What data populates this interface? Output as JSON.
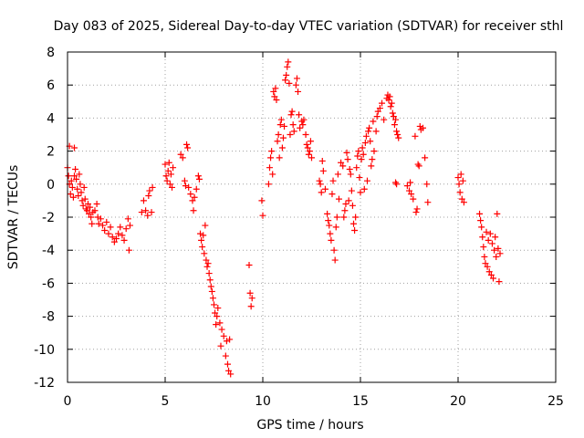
{
  "chart_data": {
    "type": "scatter",
    "title": "Day 083 of 2025, Sidereal Day-to-day VTEC variation (SDTVAR) for receiver sthl",
    "xlabel": "GPS time / hours",
    "ylabel": "SDTVAR / TECUs",
    "xlim": [
      0,
      25
    ],
    "ylim": [
      -12,
      8
    ],
    "xticks": [
      0,
      5,
      10,
      15,
      20,
      25
    ],
    "yticks": [
      -12,
      -10,
      -8,
      -6,
      -4,
      -2,
      0,
      2,
      4,
      6,
      8
    ],
    "grid": true,
    "marker": "+",
    "color": "#ff0000",
    "series": [
      {
        "name": "SDTVAR",
        "points": [
          [
            0.0,
            1.0
          ],
          [
            0.05,
            0.5
          ],
          [
            0.1,
            2.3
          ],
          [
            0.1,
            0.0
          ],
          [
            0.15,
            -0.6
          ],
          [
            0.2,
            0.2
          ],
          [
            0.25,
            -0.2
          ],
          [
            0.3,
            -0.8
          ],
          [
            0.35,
            2.2
          ],
          [
            0.35,
            0.5
          ],
          [
            0.4,
            0.9
          ],
          [
            0.45,
            0.3
          ],
          [
            0.5,
            -0.3
          ],
          [
            0.55,
            -0.7
          ],
          [
            0.6,
            0.6
          ],
          [
            0.65,
            0.0
          ],
          [
            0.7,
            -0.5
          ],
          [
            0.75,
            -1.0
          ],
          [
            0.8,
            -1.3
          ],
          [
            0.85,
            -0.2
          ],
          [
            0.9,
            -0.9
          ],
          [
            0.95,
            -1.5
          ],
          [
            1.0,
            -1.6
          ],
          [
            1.05,
            -1.2
          ],
          [
            1.1,
            -1.8
          ],
          [
            1.15,
            -1.4
          ],
          [
            1.2,
            -2.0
          ],
          [
            1.25,
            -2.4
          ],
          [
            1.3,
            -1.7
          ],
          [
            1.4,
            -1.6
          ],
          [
            1.5,
            -1.2
          ],
          [
            1.55,
            -2.0
          ],
          [
            1.6,
            -2.4
          ],
          [
            1.7,
            -2.1
          ],
          [
            1.8,
            -2.5
          ],
          [
            1.9,
            -2.8
          ],
          [
            2.0,
            -2.3
          ],
          [
            2.1,
            -3.0
          ],
          [
            2.2,
            -2.6
          ],
          [
            2.3,
            -3.2
          ],
          [
            2.4,
            -3.5
          ],
          [
            2.5,
            -3.3
          ],
          [
            2.6,
            -3.0
          ],
          [
            2.7,
            -2.6
          ],
          [
            2.8,
            -3.1
          ],
          [
            2.9,
            -3.4
          ],
          [
            3.0,
            -2.7
          ],
          [
            3.1,
            -2.1
          ],
          [
            3.15,
            -4.0
          ],
          [
            3.2,
            -2.5
          ],
          [
            3.8,
            -1.7
          ],
          [
            3.9,
            -1.0
          ],
          [
            4.0,
            -1.6
          ],
          [
            4.1,
            -1.9
          ],
          [
            4.15,
            -0.7
          ],
          [
            4.2,
            -0.4
          ],
          [
            4.3,
            -1.7
          ],
          [
            4.35,
            -0.2
          ],
          [
            5.0,
            1.2
          ],
          [
            5.05,
            0.5
          ],
          [
            5.1,
            0.2
          ],
          [
            5.15,
            0.8
          ],
          [
            5.2,
            1.3
          ],
          [
            5.25,
            0.0
          ],
          [
            5.3,
            0.6
          ],
          [
            5.35,
            -0.2
          ],
          [
            5.4,
            1.0
          ],
          [
            5.8,
            1.8
          ],
          [
            5.9,
            1.6
          ],
          [
            6.0,
            0.2
          ],
          [
            6.05,
            -0.1
          ],
          [
            6.1,
            2.4
          ],
          [
            6.15,
            2.2
          ],
          [
            6.2,
            -0.2
          ],
          [
            6.3,
            -0.6
          ],
          [
            6.4,
            -1.0
          ],
          [
            6.45,
            -1.6
          ],
          [
            6.5,
            -0.8
          ],
          [
            6.6,
            -0.3
          ],
          [
            6.7,
            0.5
          ],
          [
            6.75,
            0.3
          ],
          [
            6.8,
            -3.0
          ],
          [
            6.85,
            -3.4
          ],
          [
            6.9,
            -3.8
          ],
          [
            6.95,
            -3.1
          ],
          [
            7.0,
            -4.2
          ],
          [
            7.05,
            -2.5
          ],
          [
            7.1,
            -4.6
          ],
          [
            7.15,
            -5.0
          ],
          [
            7.2,
            -4.8
          ],
          [
            7.25,
            -5.4
          ],
          [
            7.3,
            -5.8
          ],
          [
            7.35,
            -6.2
          ],
          [
            7.4,
            -6.5
          ],
          [
            7.45,
            -6.9
          ],
          [
            7.5,
            -7.3
          ],
          [
            7.55,
            -7.8
          ],
          [
            7.6,
            -8.5
          ],
          [
            7.65,
            -8.0
          ],
          [
            7.7,
            -7.5
          ],
          [
            7.8,
            -8.4
          ],
          [
            7.85,
            -9.8
          ],
          [
            7.9,
            -8.8
          ],
          [
            8.0,
            -9.2
          ],
          [
            8.1,
            -10.4
          ],
          [
            8.15,
            -9.5
          ],
          [
            8.2,
            -10.9
          ],
          [
            8.25,
            -11.3
          ],
          [
            8.3,
            -9.4
          ],
          [
            8.35,
            -11.5
          ],
          [
            9.3,
            -4.9
          ],
          [
            9.35,
            -6.6
          ],
          [
            9.4,
            -7.4
          ],
          [
            9.45,
            -6.9
          ],
          [
            9.95,
            -1.0
          ],
          [
            10.0,
            -1.9
          ],
          [
            10.3,
            0.0
          ],
          [
            10.35,
            1.0
          ],
          [
            10.4,
            1.6
          ],
          [
            10.45,
            2.0
          ],
          [
            10.5,
            0.6
          ],
          [
            10.55,
            5.6
          ],
          [
            10.6,
            5.3
          ],
          [
            10.65,
            5.8
          ],
          [
            10.7,
            5.1
          ],
          [
            10.75,
            2.6
          ],
          [
            10.8,
            3.0
          ],
          [
            10.85,
            1.6
          ],
          [
            10.9,
            3.6
          ],
          [
            10.95,
            3.9
          ],
          [
            11.0,
            2.2
          ],
          [
            11.05,
            2.8
          ],
          [
            11.1,
            3.5
          ],
          [
            11.15,
            6.3
          ],
          [
            11.2,
            6.6
          ],
          [
            11.25,
            7.1
          ],
          [
            11.3,
            7.4
          ],
          [
            11.35,
            6.1
          ],
          [
            11.4,
            3.0
          ],
          [
            11.45,
            4.2
          ],
          [
            11.5,
            4.4
          ],
          [
            11.55,
            3.6
          ],
          [
            11.6,
            3.2
          ],
          [
            11.7,
            6.0
          ],
          [
            11.75,
            6.4
          ],
          [
            11.8,
            5.6
          ],
          [
            11.85,
            4.2
          ],
          [
            11.9,
            3.4
          ],
          [
            12.0,
            3.8
          ],
          [
            12.05,
            3.6
          ],
          [
            12.1,
            3.9
          ],
          [
            12.2,
            3.0
          ],
          [
            12.25,
            2.4
          ],
          [
            12.3,
            2.2
          ],
          [
            12.35,
            1.8
          ],
          [
            12.4,
            2.0
          ],
          [
            12.45,
            2.6
          ],
          [
            12.5,
            1.6
          ],
          [
            12.9,
            0.2
          ],
          [
            12.95,
            0.0
          ],
          [
            13.0,
            -0.5
          ],
          [
            13.05,
            1.4
          ],
          [
            13.1,
            0.8
          ],
          [
            13.2,
            -0.3
          ],
          [
            13.3,
            -1.8
          ],
          [
            13.35,
            -2.2
          ],
          [
            13.4,
            -2.5
          ],
          [
            13.45,
            -3.0
          ],
          [
            13.5,
            -3.4
          ],
          [
            13.55,
            -0.6
          ],
          [
            13.6,
            0.2
          ],
          [
            13.65,
            -4.0
          ],
          [
            13.7,
            -4.6
          ],
          [
            13.75,
            -2.6
          ],
          [
            13.8,
            -2.0
          ],
          [
            13.85,
            0.6
          ],
          [
            13.9,
            -0.9
          ],
          [
            14.0,
            1.3
          ],
          [
            14.1,
            1.1
          ],
          [
            14.15,
            -2.0
          ],
          [
            14.2,
            -1.6
          ],
          [
            14.25,
            -1.2
          ],
          [
            14.3,
            1.9
          ],
          [
            14.35,
            1.5
          ],
          [
            14.4,
            -1.0
          ],
          [
            14.45,
            0.9
          ],
          [
            14.5,
            0.6
          ],
          [
            14.55,
            -0.4
          ],
          [
            14.6,
            -1.3
          ],
          [
            14.65,
            -2.4
          ],
          [
            14.7,
            -2.8
          ],
          [
            14.75,
            -2.0
          ],
          [
            14.8,
            1.0
          ],
          [
            14.85,
            1.7
          ],
          [
            14.9,
            2.0
          ],
          [
            14.95,
            0.4
          ],
          [
            15.0,
            -0.5
          ],
          [
            15.05,
            1.5
          ],
          [
            15.1,
            2.2
          ],
          [
            15.15,
            1.8
          ],
          [
            15.2,
            -0.3
          ],
          [
            15.25,
            2.5
          ],
          [
            15.3,
            2.9
          ],
          [
            15.35,
            0.2
          ],
          [
            15.4,
            3.2
          ],
          [
            15.45,
            3.4
          ],
          [
            15.5,
            2.6
          ],
          [
            15.55,
            1.1
          ],
          [
            15.6,
            1.5
          ],
          [
            15.65,
            3.8
          ],
          [
            15.7,
            2.0
          ],
          [
            15.8,
            3.2
          ],
          [
            15.85,
            4.1
          ],
          [
            15.9,
            4.4
          ],
          [
            16.0,
            4.6
          ],
          [
            16.1,
            4.9
          ],
          [
            16.2,
            3.9
          ],
          [
            16.35,
            5.2
          ],
          [
            16.4,
            5.4
          ],
          [
            16.45,
            5.1
          ],
          [
            16.5,
            5.3
          ],
          [
            16.55,
            4.7
          ],
          [
            16.6,
            4.9
          ],
          [
            16.65,
            4.3
          ],
          [
            16.7,
            4.1
          ],
          [
            16.75,
            3.6
          ],
          [
            16.8,
            3.9
          ],
          [
            16.85,
            3.2
          ],
          [
            16.9,
            3.0
          ],
          [
            16.95,
            2.8
          ],
          [
            16.8,
            0.1
          ],
          [
            16.85,
            0.0
          ],
          [
            17.4,
            -0.1
          ],
          [
            17.5,
            -0.4
          ],
          [
            17.55,
            0.1
          ],
          [
            17.6,
            -0.6
          ],
          [
            17.7,
            -0.9
          ],
          [
            17.8,
            2.9
          ],
          [
            17.85,
            -1.7
          ],
          [
            17.9,
            -1.5
          ],
          [
            17.95,
            1.2
          ],
          [
            18.0,
            1.1
          ],
          [
            18.05,
            3.5
          ],
          [
            18.1,
            3.3
          ],
          [
            18.2,
            3.4
          ],
          [
            18.3,
            1.6
          ],
          [
            18.4,
            0.0
          ],
          [
            18.45,
            -1.1
          ],
          [
            20.0,
            0.4
          ],
          [
            20.05,
            0.0
          ],
          [
            20.1,
            -0.5
          ],
          [
            20.15,
            0.6
          ],
          [
            20.2,
            -0.9
          ],
          [
            20.25,
            0.2
          ],
          [
            20.3,
            -1.1
          ],
          [
            21.1,
            -1.8
          ],
          [
            21.15,
            -2.2
          ],
          [
            21.2,
            -2.6
          ],
          [
            21.25,
            -3.2
          ],
          [
            21.3,
            -3.8
          ],
          [
            21.35,
            -4.4
          ],
          [
            21.4,
            -4.8
          ],
          [
            21.45,
            -2.9
          ],
          [
            21.5,
            -5.0
          ],
          [
            21.55,
            -3.4
          ],
          [
            21.6,
            -5.3
          ],
          [
            21.65,
            -3.0
          ],
          [
            21.7,
            -5.5
          ],
          [
            21.75,
            -3.6
          ],
          [
            21.8,
            -5.7
          ],
          [
            21.85,
            -4.0
          ],
          [
            21.9,
            -3.2
          ],
          [
            21.95,
            -4.4
          ],
          [
            22.0,
            -1.8
          ],
          [
            22.05,
            -3.9
          ],
          [
            22.1,
            -5.9
          ],
          [
            22.15,
            -4.2
          ]
        ]
      }
    ]
  }
}
